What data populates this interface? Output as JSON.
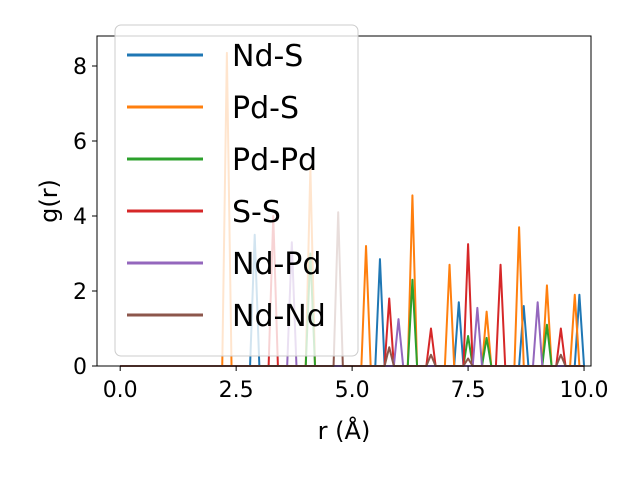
{
  "chart_data": {
    "type": "line",
    "xlabel": "r (Å)",
    "ylabel": "g(r)",
    "xlim": [
      -0.5,
      10.15
    ],
    "ylim": [
      0,
      8.8
    ],
    "xticks": [
      "0.0",
      "2.5",
      "5.0",
      "7.5",
      "10.0"
    ],
    "xtick_values": [
      0,
      2.5,
      5,
      7.5,
      10
    ],
    "yticks": [
      "0",
      "2",
      "4",
      "6",
      "8"
    ],
    "ytick_values": [
      0,
      2,
      4,
      6,
      8
    ],
    "grid": false,
    "legend_position": "upper-left",
    "series": [
      {
        "name": "Nd-S",
        "color": "#1f77b4",
        "peaks": [
          [
            2.9,
            3.5
          ],
          [
            5.6,
            2.85
          ],
          [
            7.3,
            1.7
          ],
          [
            8.7,
            1.6
          ],
          [
            9.9,
            1.9
          ]
        ]
      },
      {
        "name": "Pd-S",
        "color": "#ff7f0e",
        "peaks": [
          [
            2.3,
            8.35
          ],
          [
            4.1,
            5.3
          ],
          [
            5.3,
            3.2
          ],
          [
            6.3,
            4.55
          ],
          [
            7.1,
            2.7
          ],
          [
            7.9,
            1.45
          ],
          [
            8.6,
            3.7
          ],
          [
            9.2,
            2.15
          ],
          [
            9.8,
            1.9
          ]
        ]
      },
      {
        "name": "Pd-Pd",
        "color": "#2ca02c",
        "peaks": [
          [
            4.1,
            3.0
          ],
          [
            6.3,
            2.3
          ],
          [
            7.5,
            0.8
          ],
          [
            7.9,
            0.75
          ],
          [
            9.2,
            1.1
          ]
        ]
      },
      {
        "name": "S-S",
        "color": "#d62728",
        "peaks": [
          [
            3.3,
            4.0
          ],
          [
            5.8,
            1.8
          ],
          [
            6.7,
            1.0
          ],
          [
            7.5,
            3.25
          ],
          [
            8.2,
            2.7
          ],
          [
            9.5,
            1.0
          ]
        ]
      },
      {
        "name": "Nd-Pd",
        "color": "#9467bd",
        "peaks": [
          [
            3.7,
            3.3
          ],
          [
            6.0,
            1.25
          ],
          [
            7.7,
            1.55
          ],
          [
            9.0,
            1.7
          ]
        ]
      },
      {
        "name": "Nd-Nd",
        "color": "#8c564b",
        "peaks": [
          [
            4.7,
            4.1
          ],
          [
            5.8,
            0.5
          ],
          [
            6.7,
            0.3
          ],
          [
            7.5,
            0.2
          ],
          [
            9.5,
            0.3
          ]
        ]
      }
    ]
  }
}
